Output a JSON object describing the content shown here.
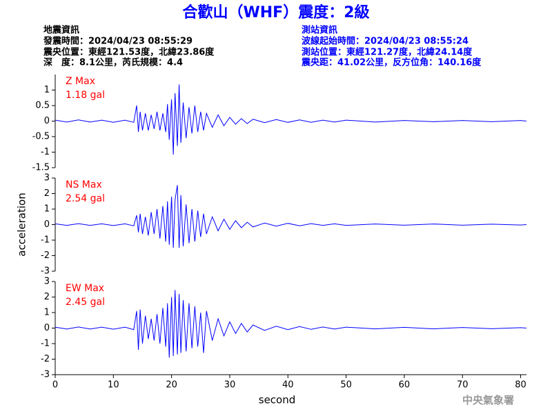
{
  "title": "合歡山（WHF）震度：2級",
  "header": {
    "left": [
      "地震資訊",
      "發震時間：2024/04/23 08:55:29",
      "震央位置：東經121.53度，北緯23.86度",
      "深　度：8.1公里，芮氏規模：4.4"
    ],
    "right": [
      "測站資訊",
      "波線起始時間：2024/04/23 08:55:24",
      "測站位置：東經121.27度，北緯24.14度",
      "震央距：41.02公里，反方位角：140.16度"
    ]
  },
  "footer": "中央氣象署",
  "chart_data": [
    {
      "type": "line",
      "annotation": [
        "Z Max",
        "1.18 gal"
      ],
      "x": [
        0,
        2,
        4,
        6,
        8,
        10,
        12,
        13.5,
        14,
        14.3,
        14.6,
        15,
        15.5,
        16,
        16.5,
        17,
        17.5,
        18,
        18.5,
        19,
        19.3,
        19.6,
        20,
        20.3,
        20.6,
        21,
        21.3,
        21.6,
        22,
        22.5,
        23,
        23.5,
        24,
        24.5,
        25,
        25.5,
        26,
        27,
        28,
        29,
        30,
        31,
        32,
        33,
        34,
        36,
        38,
        40,
        42,
        44,
        46,
        48,
        50,
        55,
        60,
        65,
        70,
        75,
        80,
        81
      ],
      "xlim": [
        0,
        81
      ],
      "ylim": [
        -1.5,
        1.5
      ],
      "yticks": [
        -1.5,
        -1,
        -0.5,
        0,
        0.5,
        1
      ],
      "series": [
        {
          "color": "#0000ff",
          "values": [
            0.03,
            -0.03,
            0.04,
            -0.03,
            0.03,
            -0.04,
            0.03,
            -0.04,
            0.5,
            -0.35,
            0.3,
            -0.3,
            0.25,
            -0.3,
            0.2,
            -0.25,
            0.3,
            -0.3,
            0.25,
            -0.35,
            0.55,
            -0.6,
            0.7,
            -1.08,
            0.9,
            -0.8,
            1.18,
            -0.7,
            0.6,
            -0.55,
            0.45,
            -0.4,
            0.5,
            -0.35,
            0.3,
            -0.3,
            0.25,
            -0.2,
            0.2,
            -0.15,
            0.12,
            -0.1,
            0.08,
            -0.08,
            0.06,
            -0.05,
            0.05,
            -0.04,
            0.04,
            -0.04,
            0.03,
            -0.03,
            0.03,
            -0.03,
            0.02,
            -0.02,
            0.02,
            -0.02,
            0.02,
            0.0
          ]
        }
      ]
    },
    {
      "type": "line",
      "annotation": [
        "NS Max",
        "2.54 gal"
      ],
      "ylabel": "acceleration",
      "x": [
        0,
        2,
        4,
        6,
        8,
        10,
        12,
        13.5,
        14,
        14.3,
        14.6,
        15,
        15.5,
        16,
        16.5,
        17,
        17.5,
        18,
        18.5,
        19,
        19.3,
        19.6,
        20,
        20.3,
        20.6,
        21,
        21.3,
        21.6,
        22,
        22.5,
        23,
        23.5,
        24,
        24.5,
        25,
        25.5,
        26,
        27,
        28,
        29,
        30,
        31,
        32,
        33,
        34,
        36,
        38,
        40,
        42,
        44,
        46,
        48,
        50,
        55,
        60,
        65,
        70,
        75,
        80,
        81
      ],
      "xlim": [
        0,
        81
      ],
      "ylim": [
        -3,
        3
      ],
      "yticks": [
        -3,
        -2,
        -1,
        0,
        1,
        2,
        3
      ],
      "series": [
        {
          "color": "#0000ff",
          "values": [
            0.05,
            -0.05,
            0.06,
            -0.05,
            0.05,
            -0.06,
            0.05,
            -0.08,
            0.6,
            -0.5,
            0.7,
            -0.6,
            0.5,
            -0.7,
            0.8,
            -0.6,
            1.0,
            -0.9,
            1.2,
            -1.1,
            1.5,
            -1.3,
            1.8,
            -1.5,
            1.6,
            2.54,
            -1.5,
            1.9,
            -1.4,
            1.3,
            -1.2,
            1.0,
            -1.1,
            0.9,
            -0.8,
            0.7,
            -0.6,
            0.5,
            -0.4,
            0.35,
            -0.3,
            0.25,
            -0.2,
            0.15,
            -0.15,
            0.1,
            -0.1,
            0.08,
            -0.08,
            0.06,
            -0.05,
            0.05,
            -0.05,
            0.04,
            -0.04,
            0.04,
            -0.04,
            0.03,
            -0.03,
            0.0
          ]
        }
      ]
    },
    {
      "type": "line",
      "annotation": [
        "EW Max",
        "2.45 gal"
      ],
      "xlabel": "second",
      "x": [
        0,
        2,
        4,
        6,
        8,
        10,
        12,
        13.5,
        14,
        14.3,
        14.6,
        15,
        15.5,
        16,
        16.5,
        17,
        17.5,
        18,
        18.5,
        19,
        19.3,
        19.6,
        20,
        20.3,
        20.6,
        21,
        21.3,
        21.6,
        22,
        22.5,
        23,
        23.5,
        24,
        24.5,
        25,
        25.5,
        26,
        27,
        28,
        29,
        30,
        31,
        32,
        33,
        34,
        36,
        38,
        40,
        42,
        44,
        46,
        48,
        50,
        55,
        60,
        65,
        70,
        75,
        80,
        81
      ],
      "xlim": [
        0,
        81
      ],
      "xticks": [
        0,
        10,
        20,
        30,
        40,
        50,
        60,
        70,
        80
      ],
      "ylim": [
        -3,
        3
      ],
      "yticks": [
        -3,
        -2,
        -1,
        0,
        1,
        2,
        3
      ],
      "series": [
        {
          "color": "#0000ff",
          "values": [
            0.06,
            -0.06,
            0.07,
            -0.06,
            0.06,
            -0.07,
            0.06,
            -0.1,
            1.1,
            -1.4,
            1.2,
            -1.0,
            0.8,
            -0.7,
            0.6,
            -0.8,
            0.9,
            -1.0,
            1.3,
            -1.2,
            1.6,
            -1.9,
            2.0,
            -1.8,
            2.45,
            -1.7,
            2.2,
            -1.6,
            1.8,
            -1.5,
            1.6,
            -1.3,
            1.4,
            -1.2,
            1.0,
            -1.6,
            1.1,
            -0.8,
            0.6,
            -0.5,
            0.4,
            -0.35,
            0.3,
            -0.25,
            0.2,
            -0.15,
            0.12,
            -0.1,
            0.1,
            -0.08,
            0.07,
            -0.06,
            0.06,
            -0.05,
            0.05,
            -0.05,
            0.04,
            -0.04,
            0.03,
            0.0
          ]
        }
      ]
    }
  ]
}
